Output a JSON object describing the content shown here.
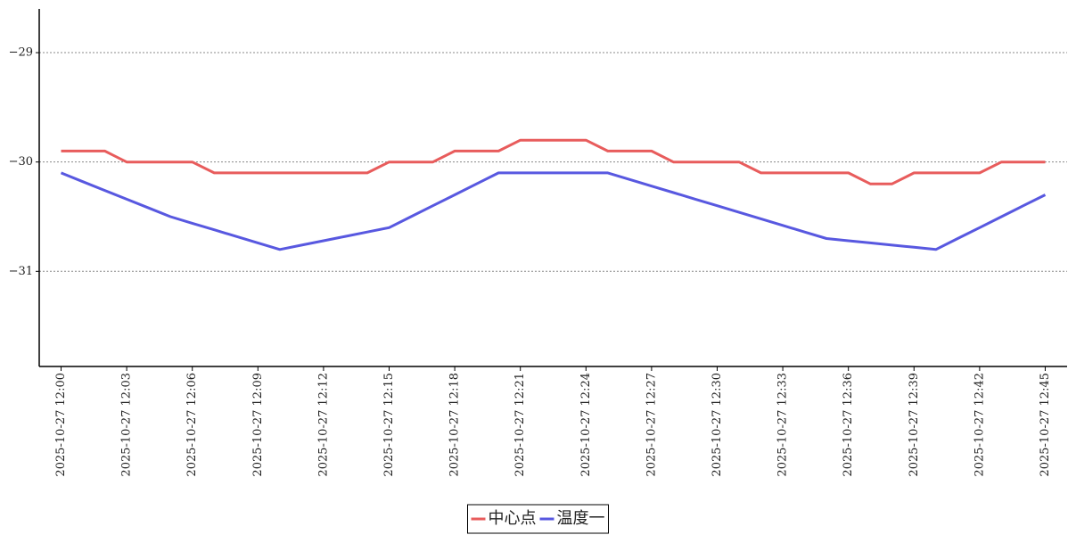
{
  "chart_data": {
    "type": "line",
    "categories": [
      "2025-10-27 12:00",
      null,
      null,
      "2025-10-27 12:03",
      null,
      null,
      "2025-10-27 12:06",
      null,
      null,
      "2025-10-27 12:09",
      null,
      null,
      "2025-10-27 12:12",
      null,
      null,
      "2025-10-27 12:15",
      null,
      null,
      "2025-10-27 12:18",
      null,
      null,
      "2025-10-27 12:21",
      null,
      null,
      "2025-10-27 12:24",
      null,
      null,
      "2025-10-27 12:27",
      null,
      null,
      "2025-10-27 12:30",
      null,
      null,
      "2025-10-27 12:33",
      null,
      null,
      "2025-10-27 12:36",
      null,
      null,
      "2025-10-27 12:39",
      null,
      null,
      "2025-10-27 12:42",
      null,
      null,
      "2025-10-27 12:45"
    ],
    "series": [
      {
        "name": "中心点",
        "color": "#e85c5c",
        "values": [
          -29.9,
          -29.9,
          -29.9,
          -30,
          -30,
          -30,
          -30,
          -30.1,
          -30.1,
          -30.1,
          -30.1,
          -30.1,
          -30.1,
          -30.1,
          -30.1,
          -30,
          -30,
          -30,
          -29.9,
          -29.9,
          -29.9,
          -29.8,
          -29.8,
          -29.8,
          -29.8,
          -29.9,
          -29.9,
          -29.9,
          -30,
          -30,
          -30,
          -30,
          -30.1,
          -30.1,
          -30.1,
          -30.1,
          -30.1,
          -30.2,
          -30.2,
          -30.1,
          -30.1,
          -30.1,
          -30.1,
          -30,
          -30,
          -30
        ]
      },
      {
        "name": "温度一",
        "color": "#5858e0",
        "values": [
          -30.1,
          -30.18,
          -30.26,
          -30.34,
          -30.42,
          -30.5,
          -30.56,
          -30.62,
          -30.68,
          -30.74,
          -30.8,
          -30.76,
          -30.72,
          -30.68,
          -30.64,
          -30.6,
          -30.5,
          -30.4,
          -30.3,
          -30.2,
          -30.1,
          -30.1,
          -30.1,
          -30.1,
          -30.1,
          -30.1,
          -30.16,
          -30.22,
          -30.28,
          -30.34,
          -30.4,
          -30.46,
          -30.52,
          -30.58,
          -30.64,
          -30.7,
          -30.72,
          -30.74,
          -30.76,
          -30.78,
          -30.8,
          -30.7,
          -30.6,
          -30.5,
          -30.4,
          -30.3
        ]
      }
    ],
    "ylim": [
      -31.87,
      -28.6
    ],
    "yticks": [
      {
        "value": -31,
        "label": "−31"
      },
      {
        "value": -30,
        "label": "−30"
      },
      {
        "value": -29,
        "label": "−29"
      }
    ],
    "grid": true,
    "legend": "bottom"
  }
}
